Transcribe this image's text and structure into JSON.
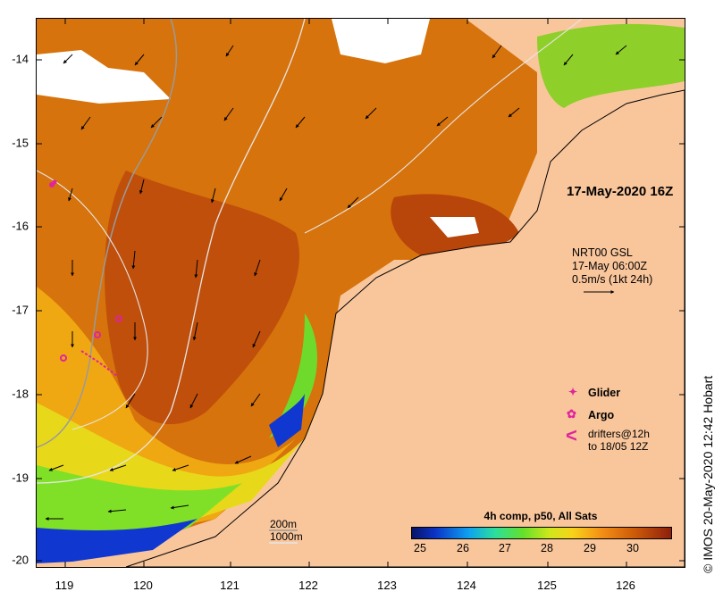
{
  "map": {
    "datetime_title": "17-May-2020 16Z",
    "y_ticks": [
      "-14",
      "-15",
      "-16",
      "-17",
      "-18",
      "-19",
      "-20"
    ],
    "x_ticks": [
      "119",
      "120",
      "121",
      "122",
      "123",
      "124",
      "125",
      "126"
    ],
    "colors": {
      "land": "#f9c69c",
      "warm_water": "#d6730c",
      "hot_water": "#b8450a",
      "cool_water": "#7fe027",
      "cold_water": "#1038d0",
      "no_data": "#ffffff",
      "marker": "#e0259c"
    }
  },
  "vector_legend": {
    "source": "NRT00 GSL",
    "time": "17-May 06:00Z",
    "scale": "0.5m/s (1kt 24h)"
  },
  "legend": {
    "glider": "Glider",
    "argo": "Argo",
    "drifter_line1": "drifters@12h",
    "drifter_line2": "to 18/05 12Z",
    "drifter_symbol": "<"
  },
  "contours": {
    "line1": "200m",
    "line2": "1000m"
  },
  "colorbar": {
    "title": "4h comp, p50, All Sats",
    "ticks": [
      "25",
      "26",
      "27",
      "28",
      "29",
      "30"
    ],
    "colors": [
      "#071366",
      "#0b34c6",
      "#0ea2f0",
      "#2bdf9c",
      "#65e02a",
      "#cfe81c",
      "#f7d31a",
      "#f49016",
      "#cf5e0a",
      "#8e200c"
    ]
  },
  "credit": "IMOS 20-May-2020 12:42 Hobart"
}
